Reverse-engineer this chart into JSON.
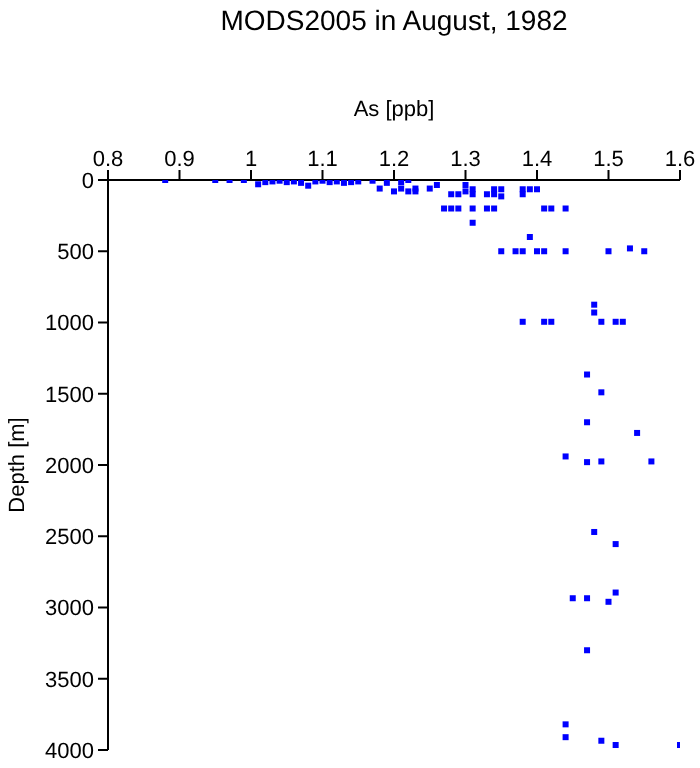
{
  "chart_data": {
    "type": "scatter",
    "title": "MODS2005 in August, 1982",
    "xlabel": "As [ppb]",
    "ylabel": "Depth [m]",
    "xlim": [
      0.8,
      1.6
    ],
    "xticks": [
      0.8,
      0.9,
      1,
      1.1,
      1.2,
      1.3,
      1.4,
      1.5,
      1.6
    ],
    "ylim": [
      4000,
      0
    ],
    "yticks": [
      0,
      500,
      1000,
      1500,
      2000,
      2500,
      3000,
      3500,
      4000
    ],
    "grid": false,
    "legend": false,
    "marker": "square",
    "series": [
      {
        "color": "#0000ff",
        "x": [
          0.88,
          0.95,
          0.97,
          0.99,
          1.01,
          1.02,
          1.03,
          1.04,
          1.05,
          1.06,
          1.07,
          1.08,
          1.09,
          1.1,
          1.11,
          1.12,
          1.13,
          1.14,
          1.15,
          1.17,
          1.18,
          1.19,
          1.2,
          1.21,
          1.22,
          1.23,
          1.22,
          1.21,
          1.23,
          1.25,
          1.26,
          1.28,
          1.29,
          1.3,
          1.3,
          1.31,
          1.31,
          1.33,
          1.34,
          1.34,
          1.35,
          1.35,
          1.38,
          1.38,
          1.39,
          1.4,
          1.27,
          1.28,
          1.29,
          1.31,
          1.33,
          1.34,
          1.41,
          1.42,
          1.44,
          1.31,
          1.39,
          1.35,
          1.37,
          1.38,
          1.4,
          1.41,
          1.44,
          1.5,
          1.53,
          1.55,
          1.48,
          1.48,
          1.38,
          1.41,
          1.42,
          1.49,
          1.51,
          1.52,
          1.47,
          1.49,
          1.47,
          1.54,
          1.44,
          1.47,
          1.49,
          1.56,
          1.48,
          1.51,
          1.51,
          1.45,
          1.47,
          1.5,
          1.47,
          1.44,
          1.44,
          1.49,
          1.51,
          1.6
        ],
        "values": [
          0,
          0,
          0,
          0,
          30,
          15,
          10,
          5,
          15,
          10,
          20,
          40,
          10,
          5,
          15,
          10,
          20,
          15,
          10,
          5,
          60,
          20,
          80,
          15,
          80,
          80,
          0,
          60,
          60,
          60,
          35,
          100,
          100,
          35,
          80,
          65,
          100,
          100,
          65,
          100,
          65,
          115,
          65,
          100,
          65,
          65,
          200,
          200,
          200,
          200,
          200,
          200,
          200,
          200,
          200,
          300,
          400,
          500,
          500,
          500,
          500,
          500,
          500,
          500,
          480,
          500,
          875,
          930,
          995,
          995,
          995,
          995,
          995,
          995,
          1365,
          1490,
          1700,
          1775,
          1940,
          1980,
          1975,
          1975,
          2470,
          2555,
          2895,
          2935,
          2935,
          2960,
          3300,
          3820,
          3910,
          3935,
          3965,
          3965
        ]
      }
    ]
  }
}
